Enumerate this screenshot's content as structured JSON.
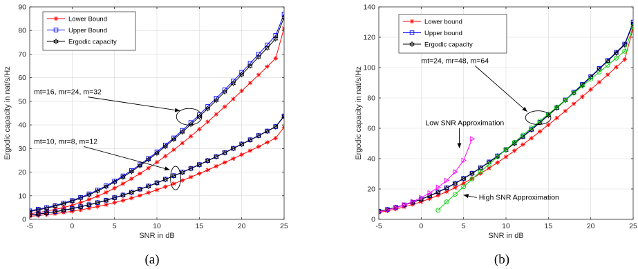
{
  "chart_data": [
    {
      "type": "line",
      "panel_label": "(a)",
      "xlabel": "SNR in dB",
      "ylabel": "Ergodic capacity in nat/s/Hz",
      "xlim": [
        -5,
        25
      ],
      "ylim": [
        0,
        90
      ],
      "xticks": [
        -5,
        0,
        5,
        10,
        15,
        20,
        25
      ],
      "yticks": [
        0,
        10,
        20,
        30,
        40,
        50,
        60,
        70,
        80,
        90
      ],
      "grid": true,
      "legend_position": "top-left",
      "legend": [
        {
          "name": "Lower Bound",
          "color": "#ff0000",
          "marker": "star"
        },
        {
          "name": "Upper Bound",
          "color": "#0000ff",
          "marker": "square"
        },
        {
          "name": "Ergodic capacity",
          "color": "#000000",
          "marker": "hexagram"
        }
      ],
      "x": [
        -5,
        -4,
        -3,
        -2,
        -1,
        0,
        1,
        2,
        3,
        4,
        5,
        6,
        7,
        8,
        9,
        10,
        11,
        12,
        13,
        14,
        15,
        16,
        17,
        18,
        19,
        20,
        21,
        22,
        23,
        24,
        25
      ],
      "series": [
        {
          "legend_index": 0,
          "color": "#ff0000",
          "marker": "star",
          "values": [
            2.4,
            2.9,
            3.5,
            4.2,
            5.0,
            6.0,
            7.1,
            8.4,
            9.8,
            11.4,
            13.2,
            15.1,
            17.2,
            19.4,
            21.7,
            24.2,
            26.8,
            29.5,
            32.3,
            35.2,
            38.2,
            41.3,
            44.5,
            47.7,
            51.0,
            54.4,
            57.8,
            61.2,
            64.7,
            68.2,
            81.0
          ],
          "group": "mt=16"
        },
        {
          "legend_index": 1,
          "color": "#0000ff",
          "marker": "square",
          "values": [
            3.6,
            4.3,
            5.0,
            5.9,
            6.9,
            8.0,
            9.3,
            10.8,
            12.4,
            14.2,
            16.2,
            18.4,
            20.7,
            23.2,
            25.8,
            28.6,
            31.5,
            34.5,
            37.7,
            41.0,
            44.3,
            47.8,
            51.3,
            54.9,
            58.6,
            62.3,
            66.1,
            70.0,
            73.9,
            77.9,
            87.0
          ],
          "group": "mt=16"
        },
        {
          "legend_index": 2,
          "color": "#000000",
          "marker": "hexagram",
          "values": [
            3.3,
            4.0,
            4.7,
            5.6,
            6.6,
            7.7,
            9.0,
            10.4,
            12.0,
            13.8,
            15.8,
            17.9,
            20.2,
            22.7,
            25.3,
            28.0,
            30.9,
            33.9,
            37.0,
            40.2,
            43.5,
            46.9,
            50.4,
            54.0,
            57.6,
            61.3,
            65.0,
            68.8,
            72.6,
            76.5,
            85.5
          ],
          "group": "mt=16"
        },
        {
          "legend_index": 0,
          "color": "#ff0000",
          "marker": "star",
          "values": [
            1.3,
            1.6,
            2.0,
            2.4,
            2.9,
            3.4,
            4.0,
            4.7,
            5.4,
            6.2,
            7.1,
            8.0,
            9.0,
            10.1,
            11.3,
            12.5,
            13.8,
            15.1,
            16.5,
            17.9,
            19.4,
            20.9,
            22.5,
            24.1,
            25.7,
            27.4,
            29.1,
            30.8,
            32.6,
            34.4,
            39.0
          ],
          "group": "mt=10"
        },
        {
          "legend_index": 1,
          "color": "#0000ff",
          "marker": "square",
          "values": [
            1.9,
            2.3,
            2.8,
            3.3,
            3.9,
            4.6,
            5.4,
            6.2,
            7.1,
            8.1,
            9.2,
            10.3,
            11.5,
            12.8,
            14.1,
            15.5,
            17.0,
            18.5,
            20.0,
            21.6,
            23.2,
            24.9,
            26.6,
            28.3,
            30.1,
            31.9,
            33.7,
            35.5,
            37.4,
            39.3,
            43.8
          ],
          "group": "mt=10"
        },
        {
          "legend_index": 2,
          "color": "#000000",
          "marker": "hexagram",
          "values": [
            1.8,
            2.2,
            2.7,
            3.2,
            3.8,
            4.5,
            5.3,
            6.1,
            7.0,
            8.0,
            9.1,
            10.2,
            11.4,
            12.7,
            14.0,
            15.4,
            16.9,
            18.4,
            19.9,
            21.5,
            23.1,
            24.8,
            26.5,
            28.2,
            30.0,
            31.8,
            33.6,
            35.4,
            37.3,
            39.2,
            43.6
          ],
          "group": "mt=10"
        }
      ],
      "annotations": [
        {
          "text": "mt=16, mr=24, m=32",
          "x": -4.5,
          "y": 53,
          "arrow_to": [
            12.7,
            46
          ],
          "ellipse": {
            "cx": 13.8,
            "cy": 43.5,
            "rx": 1.5,
            "ry": 3.5
          }
        },
        {
          "text": "mt=10, mr=8, m=12",
          "x": -4.5,
          "y": 32,
          "arrow_to": [
            11.5,
            21
          ],
          "ellipse": {
            "cx": 12.2,
            "cy": 17.5,
            "rx": 0.6,
            "ry": 5
          }
        }
      ]
    },
    {
      "type": "line",
      "panel_label": "(b)",
      "xlabel": "SNR in dB",
      "ylabel": "Ergodic capacity in nat/s/Hz",
      "xlim": [
        -5,
        25
      ],
      "ylim": [
        0,
        140
      ],
      "xticks": [
        -5,
        0,
        5,
        10,
        15,
        20,
        25
      ],
      "yticks": [
        0,
        20,
        40,
        60,
        80,
        100,
        120,
        140
      ],
      "grid": true,
      "legend_position": "top-left",
      "legend": [
        {
          "name": "Lower bound",
          "color": "#ff0000",
          "marker": "star"
        },
        {
          "name": "Upper bound",
          "color": "#0000ff",
          "marker": "square"
        },
        {
          "name": "Ergodic capacity",
          "color": "#000000",
          "marker": "hexagram"
        }
      ],
      "x": [
        -5,
        -4,
        -3,
        -2,
        -1,
        0,
        1,
        2,
        3,
        4,
        5,
        6,
        7,
        8,
        9,
        10,
        11,
        12,
        13,
        14,
        15,
        16,
        17,
        18,
        19,
        20,
        21,
        22,
        23,
        24,
        25
      ],
      "series": [
        {
          "legend_index": 0,
          "color": "#ff0000",
          "marker": "star",
          "values": [
            4.5,
            5.6,
            6.8,
            8.2,
            9.8,
            11.6,
            13.6,
            15.8,
            18.2,
            20.9,
            23.8,
            26.9,
            30.2,
            33.7,
            37.4,
            41.2,
            45.2,
            49.3,
            53.5,
            57.9,
            62.3,
            66.8,
            71.4,
            76.1,
            80.8,
            85.6,
            90.4,
            95.3,
            100.3,
            105.3,
            126.0
          ]
        },
        {
          "legend_index": 1,
          "color": "#0000ff",
          "marker": "square",
          "values": [
            5.3,
            6.5,
            7.9,
            9.5,
            11.3,
            13.3,
            15.6,
            18.1,
            20.8,
            23.8,
            27.0,
            30.4,
            34.0,
            37.8,
            41.8,
            46.0,
            50.3,
            54.7,
            59.3,
            64.0,
            68.8,
            73.7,
            78.7,
            83.8,
            88.9,
            94.1,
            99.4,
            104.7,
            110.1,
            115.5,
            130.0
          ]
        },
        {
          "legend_index": 2,
          "color": "#000000",
          "marker": "hexagram",
          "values": [
            5.2,
            6.4,
            7.8,
            9.4,
            11.2,
            13.2,
            15.4,
            17.9,
            20.6,
            23.6,
            26.8,
            30.2,
            33.8,
            37.6,
            41.6,
            45.7,
            50.0,
            54.4,
            59.0,
            63.7,
            68.5,
            73.4,
            78.4,
            83.4,
            88.5,
            93.7,
            99.0,
            104.3,
            109.6,
            115.0,
            129.0
          ]
        }
      ],
      "approximations": [
        {
          "name": "Low SNR Approximation",
          "color": "#ff00ff",
          "marker": "triangle-right",
          "x": [
            -5,
            -4,
            -3,
            -2,
            -1,
            0,
            1,
            2,
            3,
            4,
            5,
            6
          ],
          "values": [
            5.0,
            6.2,
            7.7,
            9.5,
            11.7,
            14.3,
            17.4,
            21.1,
            25.6,
            31.2,
            38.8,
            53.0
          ]
        },
        {
          "name": "High SNR Approximation",
          "color": "#00cc00",
          "marker": "circle",
          "x": [
            2,
            3,
            4,
            5,
            6,
            7,
            8,
            9,
            10,
            11,
            12,
            13,
            14,
            15,
            16,
            17,
            18,
            19,
            20,
            21,
            22,
            23,
            24,
            25
          ],
          "values": [
            6.0,
            11.5,
            16.5,
            21.5,
            26.5,
            31.5,
            36.3,
            41.2,
            46.0,
            50.8,
            55.5,
            60.2,
            64.8,
            69.4,
            74.0,
            78.6,
            83.2,
            87.8,
            92.4,
            97.0,
            101.6,
            106.2,
            110.8,
            127.0
          ]
        }
      ],
      "annotations": [
        {
          "text": "mt=24, mr=48, m=64",
          "x": 0,
          "y": 103,
          "arrow_to": [
            12.5,
            71
          ],
          "ellipse": {
            "cx": 13.8,
            "cy": 67,
            "rx": 1.5,
            "ry": 4.5
          }
        },
        {
          "text": "Low SNR Approximation",
          "x": 0.5,
          "y": 62,
          "arrow_to": [
            4.5,
            47
          ]
        },
        {
          "text": "High SNR Approximation",
          "x": 6.8,
          "y": 13,
          "arrow_to": [
            5,
            16
          ]
        }
      ]
    }
  ]
}
